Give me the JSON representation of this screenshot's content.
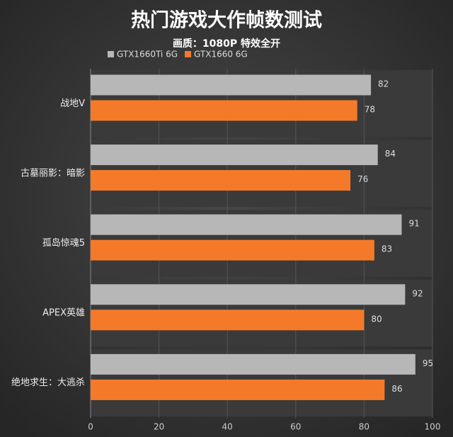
{
  "chart_data": {
    "type": "bar",
    "orientation": "horizontal",
    "title": "热门游戏大作帧数测试",
    "subtitle": "画质：1080P 特效全开",
    "categories": [
      "战地V",
      "古墓丽影：暗影",
      "孤岛惊魂5",
      "APEX英雄",
      "绝地求生：大逃杀"
    ],
    "series": [
      {
        "name": "GTX1660Ti 6G",
        "color": "#b7b7b7",
        "values": [
          82,
          84,
          91,
          92,
          95
        ]
      },
      {
        "name": "GTX1660 6G",
        "color": "#f47a2a",
        "values": [
          78,
          76,
          83,
          80,
          86
        ]
      }
    ],
    "xlim": [
      0,
      100
    ],
    "xticks": [
      0,
      20,
      40,
      60,
      80,
      100
    ],
    "grid": true
  }
}
